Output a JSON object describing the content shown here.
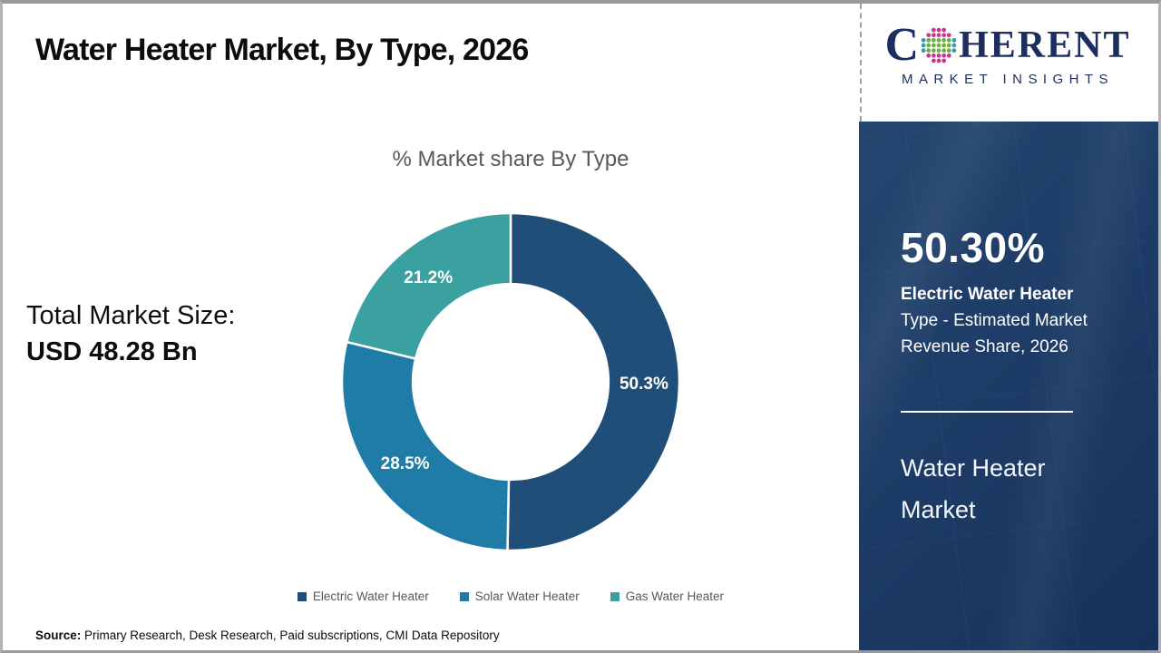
{
  "page": {
    "title": "Water Heater Market, By Type, 2026"
  },
  "logo": {
    "brand_prefix": "C",
    "brand_suffix": "HERENT",
    "tagline": "MARKET INSIGHTS",
    "brand_color": "#1b2e5f",
    "globe_dot_colors": {
      "green": "#6ab23e",
      "pink": "#c9368f",
      "teal": "#2e9bb5"
    }
  },
  "total_market": {
    "label": "Total Market Size:",
    "value": "USD 48.28 Bn"
  },
  "chart_data": {
    "type": "pie",
    "subtype": "donut",
    "title": "% Market share By Type",
    "categories": [
      "Electric Water Heater",
      "Solar Water Heater",
      "Gas Water Heater"
    ],
    "values": [
      50.3,
      28.5,
      21.2
    ],
    "data_labels": [
      "50.3%",
      "28.5%",
      "21.2%"
    ],
    "colors": [
      "#1f4e79",
      "#1f7ca6",
      "#3aa0a0"
    ],
    "start_angle_deg": 0,
    "direction": "clockwise",
    "hole_ratio": 0.58,
    "label_color": "#ffffff",
    "legend_position": "bottom"
  },
  "sidebar": {
    "stat_value": "50.30%",
    "desc_bold": "Electric Water Heater",
    "desc_rest": "Type - Estimated Market Revenue Share, 2026",
    "market_name_line1": "Water Heater",
    "market_name_line2": "Market",
    "background_color": "#1d3c67"
  },
  "source": {
    "label": "Source:",
    "text": " Primary Research, Desk Research, Paid subscriptions, CMI Data Repository"
  }
}
